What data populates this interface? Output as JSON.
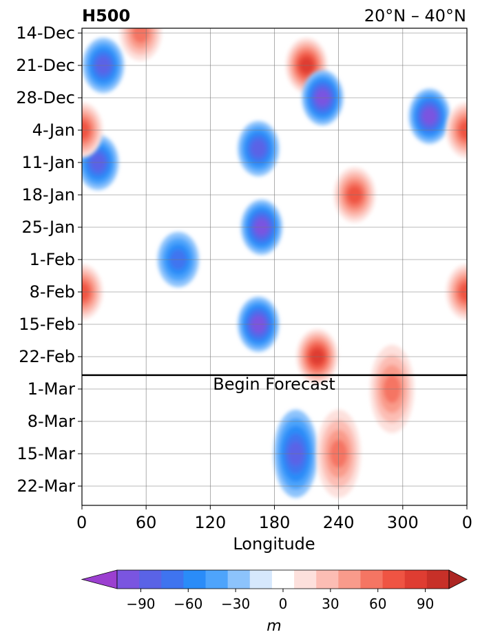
{
  "chart_data": {
    "type": "heatmap",
    "title": "H500",
    "region": "20°N – 40°N",
    "xlabel": "Longitude",
    "x_ticks": [
      "0",
      "60",
      "120",
      "180",
      "240",
      "300",
      "0"
    ],
    "y_ticks": [
      "14-Dec",
      "21-Dec",
      "28-Dec",
      "4-Jan",
      "11-Jan",
      "18-Jan",
      "25-Jan",
      "1-Feb",
      "8-Feb",
      "15-Feb",
      "22-Feb",
      "1-Mar",
      "8-Mar",
      "15-Mar",
      "22-Mar"
    ],
    "forecast_start_label": "Begin Forecast",
    "forecast_start_date": "26-Feb",
    "colorbar": {
      "label": "m",
      "ticks": [
        "−90",
        "−60",
        "−30",
        "0",
        "30",
        "60",
        "90"
      ],
      "levels": [
        -105,
        -90,
        -75,
        -60,
        -45,
        -30,
        -15,
        0,
        15,
        30,
        45,
        60,
        75,
        90,
        105
      ],
      "colors": [
        "#9b3fd0",
        "#7a55e0",
        "#5a63e6",
        "#3f74ef",
        "#2a8cf8",
        "#4ea4fb",
        "#8cc3fc",
        "#d6e8fd",
        "#ffffff",
        "#fde0dc",
        "#fcbdb4",
        "#f99b8b",
        "#f57563",
        "#ef5443",
        "#df3d32",
        "#c73028",
        "#ad2623"
      ],
      "extend": "both"
    },
    "anomaly_features": [
      {
        "sign": "positive",
        "lon_center": 55,
        "date": "14-Dec",
        "value_m": 70
      },
      {
        "sign": "negative",
        "lon_center": 20,
        "date": "21-Dec",
        "value_m": -75
      },
      {
        "sign": "positive",
        "lon_center": 210,
        "date": "21-Dec",
        "value_m": 95
      },
      {
        "sign": "negative",
        "lon_center": 225,
        "date": "28-Dec",
        "value_m": -90
      },
      {
        "sign": "negative",
        "lon_center": 325,
        "date": "1-Jan",
        "value_m": -95
      },
      {
        "sign": "negative",
        "lon_center": 165,
        "date": "8-Jan",
        "value_m": -80
      },
      {
        "sign": "negative",
        "lon_center": 15,
        "date": "11-Jan",
        "value_m": -80
      },
      {
        "sign": "positive",
        "lon_center": 0,
        "date": "4-Jan",
        "value_m": 80
      },
      {
        "sign": "positive",
        "lon_center": 255,
        "date": "18-Jan",
        "value_m": 85
      },
      {
        "sign": "negative",
        "lon_center": 168,
        "date": "25-Jan",
        "value_m": -100
      },
      {
        "sign": "negative",
        "lon_center": 90,
        "date": "1-Feb",
        "value_m": -70
      },
      {
        "sign": "negative",
        "lon_center": 165,
        "date": "15-Feb",
        "value_m": -95
      },
      {
        "sign": "positive",
        "lon_center": 220,
        "date": "22-Feb",
        "value_m": 95
      },
      {
        "sign": "positive",
        "lon_center": 0,
        "date": "8-Feb",
        "value_m": 75
      },
      {
        "sign": "negative",
        "lon_center": 200,
        "date": "15-Mar",
        "value_m": -80
      },
      {
        "sign": "positive",
        "lon_center": 240,
        "date": "15-Mar",
        "value_m": 65
      },
      {
        "sign": "positive",
        "lon_center": 290,
        "date": "1-Mar",
        "value_m": 70
      }
    ]
  }
}
